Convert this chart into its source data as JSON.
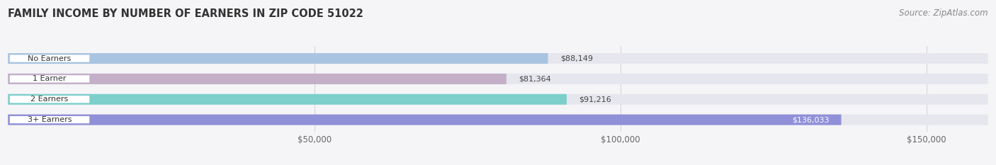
{
  "title": "FAMILY INCOME BY NUMBER OF EARNERS IN ZIP CODE 51022",
  "source": "Source: ZipAtlas.com",
  "categories": [
    "No Earners",
    "1 Earner",
    "2 Earners",
    "3+ Earners"
  ],
  "values": [
    88149,
    81364,
    91216,
    136033
  ],
  "bar_colors": [
    "#a8c4e0",
    "#c4afc8",
    "#7dcfcb",
    "#9090d8"
  ],
  "label_colors": [
    "#000000",
    "#000000",
    "#000000",
    "#ffffff"
  ],
  "value_labels": [
    "$88,149",
    "$81,364",
    "$91,216",
    "$136,033"
  ],
  "xlim": [
    0,
    160000
  ],
  "xticks": [
    50000,
    100000,
    150000
  ],
  "xtick_labels": [
    "$50,000",
    "$100,000",
    "$150,000"
  ],
  "bg_color": "#f5f5f8",
  "bar_bg_color": "#e6e6ee",
  "title_fontsize": 10.5,
  "source_fontsize": 8.5,
  "bar_height": 0.52,
  "label_fontsize": 8.0,
  "value_fontsize": 8.0
}
